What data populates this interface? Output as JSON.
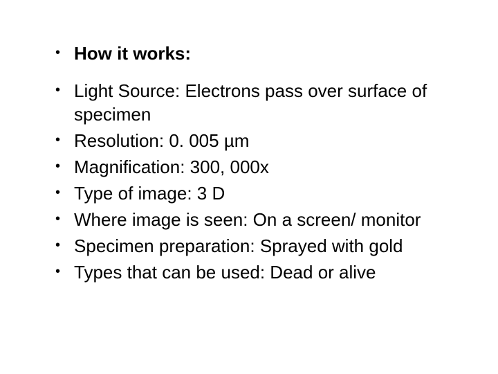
{
  "heading": "How it works:",
  "items": [
    "Light Source: Electrons pass over surface of specimen",
    "Resolution: 0. 005 µm",
    "Magnification: 300, 000x",
    "Type of image: 3 D",
    "Where image is seen: On a screen/ monitor",
    "Specimen preparation: Sprayed with gold",
    "Types that can be used: Dead or alive"
  ],
  "style": {
    "background_color": "#ffffff",
    "text_color": "#000000",
    "font_family": "Arial, Helvetica, sans-serif",
    "heading_font_size": 26,
    "heading_font_weight": "bold",
    "body_font_size": 26,
    "line_height": 34,
    "bullet_char": "•"
  }
}
